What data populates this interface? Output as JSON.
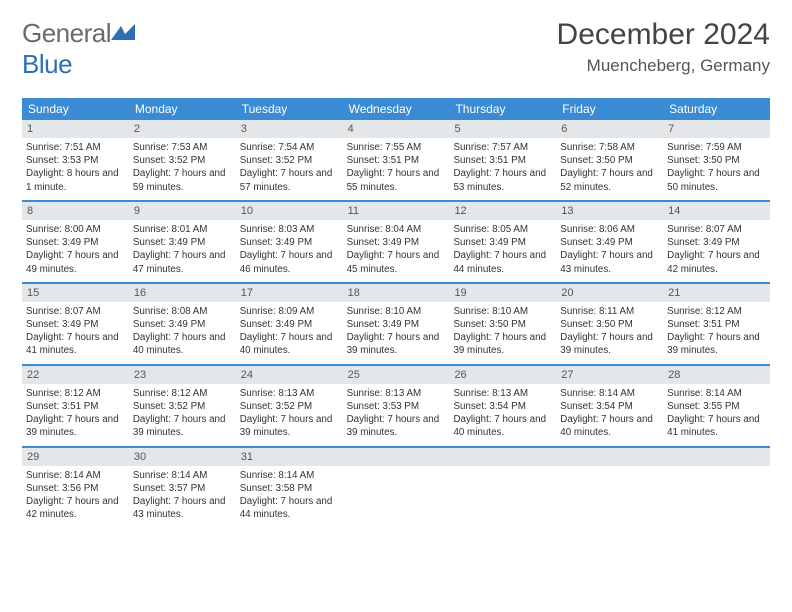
{
  "logo": {
    "text1": "General",
    "text2": "Blue"
  },
  "title": "December 2024",
  "location": "Muencheberg, Germany",
  "colors": {
    "header_bg": "#3b8bd4",
    "header_fg": "#ffffff",
    "daynum_bg": "#e4e7ea",
    "week_border": "#3b8bd4",
    "logo_gray": "#6a6a6a",
    "logo_blue": "#2d6fb5"
  },
  "day_names": [
    "Sunday",
    "Monday",
    "Tuesday",
    "Wednesday",
    "Thursday",
    "Friday",
    "Saturday"
  ],
  "weeks": [
    [
      {
        "n": "1",
        "sr": "Sunrise: 7:51 AM",
        "ss": "Sunset: 3:53 PM",
        "dl": "Daylight: 8 hours and 1 minute."
      },
      {
        "n": "2",
        "sr": "Sunrise: 7:53 AM",
        "ss": "Sunset: 3:52 PM",
        "dl": "Daylight: 7 hours and 59 minutes."
      },
      {
        "n": "3",
        "sr": "Sunrise: 7:54 AM",
        "ss": "Sunset: 3:52 PM",
        "dl": "Daylight: 7 hours and 57 minutes."
      },
      {
        "n": "4",
        "sr": "Sunrise: 7:55 AM",
        "ss": "Sunset: 3:51 PM",
        "dl": "Daylight: 7 hours and 55 minutes."
      },
      {
        "n": "5",
        "sr": "Sunrise: 7:57 AM",
        "ss": "Sunset: 3:51 PM",
        "dl": "Daylight: 7 hours and 53 minutes."
      },
      {
        "n": "6",
        "sr": "Sunrise: 7:58 AM",
        "ss": "Sunset: 3:50 PM",
        "dl": "Daylight: 7 hours and 52 minutes."
      },
      {
        "n": "7",
        "sr": "Sunrise: 7:59 AM",
        "ss": "Sunset: 3:50 PM",
        "dl": "Daylight: 7 hours and 50 minutes."
      }
    ],
    [
      {
        "n": "8",
        "sr": "Sunrise: 8:00 AM",
        "ss": "Sunset: 3:49 PM",
        "dl": "Daylight: 7 hours and 49 minutes."
      },
      {
        "n": "9",
        "sr": "Sunrise: 8:01 AM",
        "ss": "Sunset: 3:49 PM",
        "dl": "Daylight: 7 hours and 47 minutes."
      },
      {
        "n": "10",
        "sr": "Sunrise: 8:03 AM",
        "ss": "Sunset: 3:49 PM",
        "dl": "Daylight: 7 hours and 46 minutes."
      },
      {
        "n": "11",
        "sr": "Sunrise: 8:04 AM",
        "ss": "Sunset: 3:49 PM",
        "dl": "Daylight: 7 hours and 45 minutes."
      },
      {
        "n": "12",
        "sr": "Sunrise: 8:05 AM",
        "ss": "Sunset: 3:49 PM",
        "dl": "Daylight: 7 hours and 44 minutes."
      },
      {
        "n": "13",
        "sr": "Sunrise: 8:06 AM",
        "ss": "Sunset: 3:49 PM",
        "dl": "Daylight: 7 hours and 43 minutes."
      },
      {
        "n": "14",
        "sr": "Sunrise: 8:07 AM",
        "ss": "Sunset: 3:49 PM",
        "dl": "Daylight: 7 hours and 42 minutes."
      }
    ],
    [
      {
        "n": "15",
        "sr": "Sunrise: 8:07 AM",
        "ss": "Sunset: 3:49 PM",
        "dl": "Daylight: 7 hours and 41 minutes."
      },
      {
        "n": "16",
        "sr": "Sunrise: 8:08 AM",
        "ss": "Sunset: 3:49 PM",
        "dl": "Daylight: 7 hours and 40 minutes."
      },
      {
        "n": "17",
        "sr": "Sunrise: 8:09 AM",
        "ss": "Sunset: 3:49 PM",
        "dl": "Daylight: 7 hours and 40 minutes."
      },
      {
        "n": "18",
        "sr": "Sunrise: 8:10 AM",
        "ss": "Sunset: 3:49 PM",
        "dl": "Daylight: 7 hours and 39 minutes."
      },
      {
        "n": "19",
        "sr": "Sunrise: 8:10 AM",
        "ss": "Sunset: 3:50 PM",
        "dl": "Daylight: 7 hours and 39 minutes."
      },
      {
        "n": "20",
        "sr": "Sunrise: 8:11 AM",
        "ss": "Sunset: 3:50 PM",
        "dl": "Daylight: 7 hours and 39 minutes."
      },
      {
        "n": "21",
        "sr": "Sunrise: 8:12 AM",
        "ss": "Sunset: 3:51 PM",
        "dl": "Daylight: 7 hours and 39 minutes."
      }
    ],
    [
      {
        "n": "22",
        "sr": "Sunrise: 8:12 AM",
        "ss": "Sunset: 3:51 PM",
        "dl": "Daylight: 7 hours and 39 minutes."
      },
      {
        "n": "23",
        "sr": "Sunrise: 8:12 AM",
        "ss": "Sunset: 3:52 PM",
        "dl": "Daylight: 7 hours and 39 minutes."
      },
      {
        "n": "24",
        "sr": "Sunrise: 8:13 AM",
        "ss": "Sunset: 3:52 PM",
        "dl": "Daylight: 7 hours and 39 minutes."
      },
      {
        "n": "25",
        "sr": "Sunrise: 8:13 AM",
        "ss": "Sunset: 3:53 PM",
        "dl": "Daylight: 7 hours and 39 minutes."
      },
      {
        "n": "26",
        "sr": "Sunrise: 8:13 AM",
        "ss": "Sunset: 3:54 PM",
        "dl": "Daylight: 7 hours and 40 minutes."
      },
      {
        "n": "27",
        "sr": "Sunrise: 8:14 AM",
        "ss": "Sunset: 3:54 PM",
        "dl": "Daylight: 7 hours and 40 minutes."
      },
      {
        "n": "28",
        "sr": "Sunrise: 8:14 AM",
        "ss": "Sunset: 3:55 PM",
        "dl": "Daylight: 7 hours and 41 minutes."
      }
    ],
    [
      {
        "n": "29",
        "sr": "Sunrise: 8:14 AM",
        "ss": "Sunset: 3:56 PM",
        "dl": "Daylight: 7 hours and 42 minutes."
      },
      {
        "n": "30",
        "sr": "Sunrise: 8:14 AM",
        "ss": "Sunset: 3:57 PM",
        "dl": "Daylight: 7 hours and 43 minutes."
      },
      {
        "n": "31",
        "sr": "Sunrise: 8:14 AM",
        "ss": "Sunset: 3:58 PM",
        "dl": "Daylight: 7 hours and 44 minutes."
      },
      null,
      null,
      null,
      null
    ]
  ]
}
